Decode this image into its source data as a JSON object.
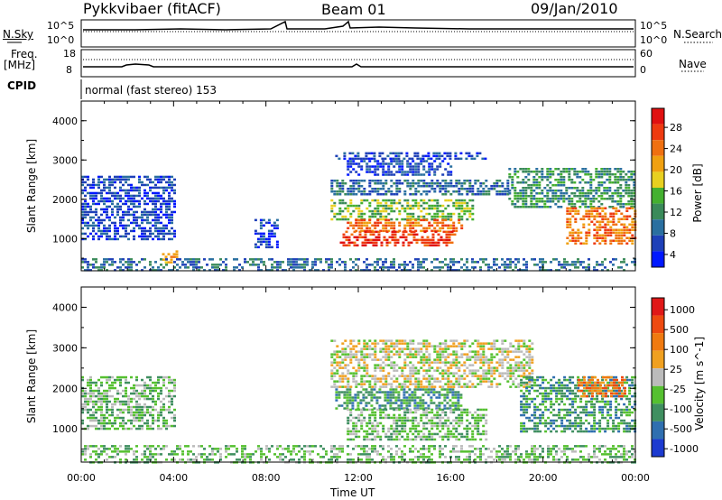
{
  "header": {
    "station": "Pykkvibaer (fitACF)",
    "beam": "Beam 01",
    "date": "09/Jan/2010"
  },
  "strip_panels": {
    "nsky": {
      "label": "N.Sky",
      "ticks_left": [
        "10^5",
        "10^0"
      ],
      "ticks_right": [
        "10^5",
        "10^0"
      ],
      "right_label": "N.Search"
    },
    "freq": {
      "label_line1": "Freq.",
      "label_line2": "[MHz]",
      "ticks_left": [
        "18",
        "8"
      ],
      "ticks_right": [
        "60",
        "0"
      ],
      "right_label": "Nave"
    },
    "cpid": {
      "label": "CPID",
      "text": "normal (fast stereo) 153"
    }
  },
  "x_axis": {
    "label": "Time UT",
    "ticks": [
      "00:00",
      "04:00",
      "08:00",
      "12:00",
      "16:00",
      "20:00",
      "00:00"
    ]
  },
  "chart_data": [
    {
      "type": "heatmap",
      "quantity": "power",
      "ylabel": "Slant Range [km]",
      "y_ticks": [
        "4000",
        "3000",
        "2000",
        "1000"
      ],
      "ylim": [
        180,
        4500
      ],
      "xlim_hours": [
        0,
        24
      ],
      "colorbar": {
        "label": "Power [dB]",
        "tick_labels": [
          "28",
          "24",
          "20",
          "16",
          "12",
          "8",
          "4"
        ],
        "colors": [
          "#0018ff",
          "#1e40b8",
          "#2a6fa0",
          "#3a8a5a",
          "#44b030",
          "#e8d020",
          "#f0a010",
          "#f07010",
          "#ee3a10",
          "#e01010"
        ]
      },
      "regions": [
        {
          "t0": 11.0,
          "t1": 17.5,
          "r0": 3000,
          "r1": 3200,
          "level": 1
        },
        {
          "t0": 11.5,
          "t1": 16.0,
          "r0": 2600,
          "r1": 3000,
          "level": 1
        },
        {
          "t0": 10.8,
          "t1": 18.5,
          "r0": 2100,
          "r1": 2500,
          "level": 2
        },
        {
          "t0": 10.8,
          "t1": 17.0,
          "r0": 1500,
          "r1": 2000,
          "level": 4
        },
        {
          "t0": 11.5,
          "t1": 16.5,
          "r0": 1200,
          "r1": 1500,
          "level": 7
        },
        {
          "t0": 11.2,
          "t1": 16.2,
          "r0": 800,
          "r1": 1200,
          "level": 8
        },
        {
          "t0": 18.5,
          "t1": 24.0,
          "r0": 1800,
          "r1": 2800,
          "level": 3
        },
        {
          "t0": 21.0,
          "t1": 24.0,
          "r0": 900,
          "r1": 1800,
          "level": 7
        },
        {
          "t0": 0.0,
          "t1": 4.0,
          "r0": 1000,
          "r1": 2600,
          "level": 1
        },
        {
          "t0": 3.5,
          "t1": 4.2,
          "r0": 400,
          "r1": 700,
          "level": 6
        },
        {
          "t0": 7.5,
          "t1": 8.5,
          "r0": 800,
          "r1": 1500,
          "level": 1
        },
        {
          "t0": 0.0,
          "t1": 24.0,
          "r0": 180,
          "r1": 500,
          "level": 2
        }
      ]
    },
    {
      "type": "heatmap",
      "quantity": "velocity",
      "ylabel": "Slant Range [km]",
      "y_ticks": [
        "4000",
        "3000",
        "2000",
        "1000"
      ],
      "ylim": [
        180,
        4500
      ],
      "xlim_hours": [
        0,
        24
      ],
      "colorbar": {
        "label": "Velocity [m s^-1]",
        "tick_labels": [
          "1000",
          "500",
          "100",
          "25",
          "-25",
          "-100",
          "-500",
          "-1000"
        ],
        "colors": [
          "#1c3ad0",
          "#2f6fb0",
          "#3f8f60",
          "#55c030",
          "#bbbbbb",
          "#f0a020",
          "#f07a10",
          "#ee4a10",
          "#e01818"
        ]
      },
      "regions": [
        {
          "t0": 10.8,
          "t1": 19.5,
          "r0": 2000,
          "r1": 3200,
          "level": 4
        },
        {
          "t0": 11.0,
          "t1": 16.5,
          "r0": 1500,
          "r1": 2000,
          "level": 2
        },
        {
          "t0": 11.5,
          "t1": 17.5,
          "r0": 700,
          "r1": 1500,
          "level": 3
        },
        {
          "t0": 19.0,
          "t1": 24.0,
          "r0": 900,
          "r1": 2300,
          "level": 2
        },
        {
          "t0": 21.5,
          "t1": 23.5,
          "r0": 1800,
          "r1": 2300,
          "level": 6
        },
        {
          "t0": 0.0,
          "t1": 4.0,
          "r0": 1000,
          "r1": 2300,
          "level": 3
        },
        {
          "t0": 0.0,
          "t1": 24.0,
          "r0": 180,
          "r1": 600,
          "level": 3
        }
      ]
    }
  ]
}
